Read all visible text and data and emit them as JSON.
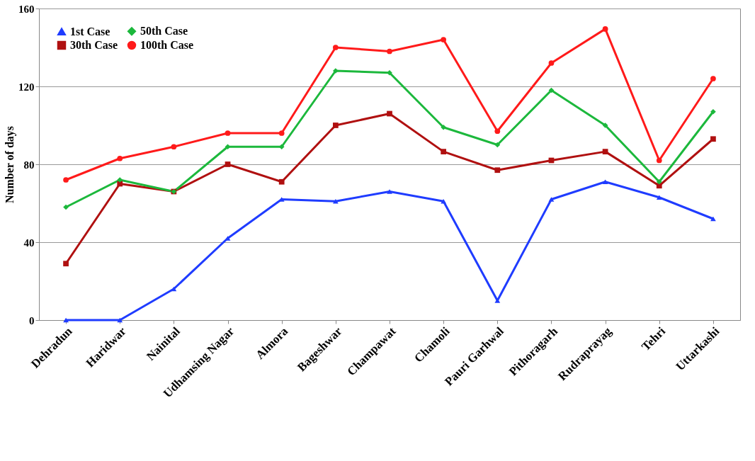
{
  "chart_data": {
    "type": "line",
    "ylabel": "Number of days",
    "categories": [
      "Dehradun",
      "Haridwar",
      "Nainital",
      "Udhamsing Nagar",
      "Almora",
      "Bageshwar",
      "Champawat",
      "Chamoli",
      "Pauri Garhwal",
      "Pithoragarh",
      "Rudraprayag",
      "Tehri",
      "Uttarkashi"
    ],
    "series": [
      {
        "name": "1st Case",
        "color": "#1f3cff",
        "marker": "triangle",
        "values": [
          0,
          0,
          16,
          42,
          62,
          61,
          66,
          61,
          10,
          62,
          71,
          63,
          52
        ]
      },
      {
        "name": "30th Case",
        "color": "#b01010",
        "marker": "square",
        "values": [
          29,
          70,
          66,
          80,
          71,
          100,
          106,
          86.5,
          77,
          82,
          86.5,
          69,
          93
        ]
      },
      {
        "name": "50th Case",
        "color": "#1cb83c",
        "marker": "diamond",
        "values": [
          58,
          72,
          66,
          89,
          89,
          128,
          127,
          99,
          90,
          118,
          100,
          71,
          107
        ]
      },
      {
        "name": "100th Case",
        "color": "#ff1a1a",
        "marker": "circle",
        "values": [
          72,
          83,
          89,
          96,
          96,
          140,
          138,
          144,
          97,
          132,
          149.5,
          82,
          124
        ]
      }
    ],
    "ylim": [
      0,
      160
    ],
    "yticks": [
      0,
      40,
      80,
      120,
      160
    ],
    "grid": "y",
    "legend": "top left",
    "line_style": "solid"
  }
}
